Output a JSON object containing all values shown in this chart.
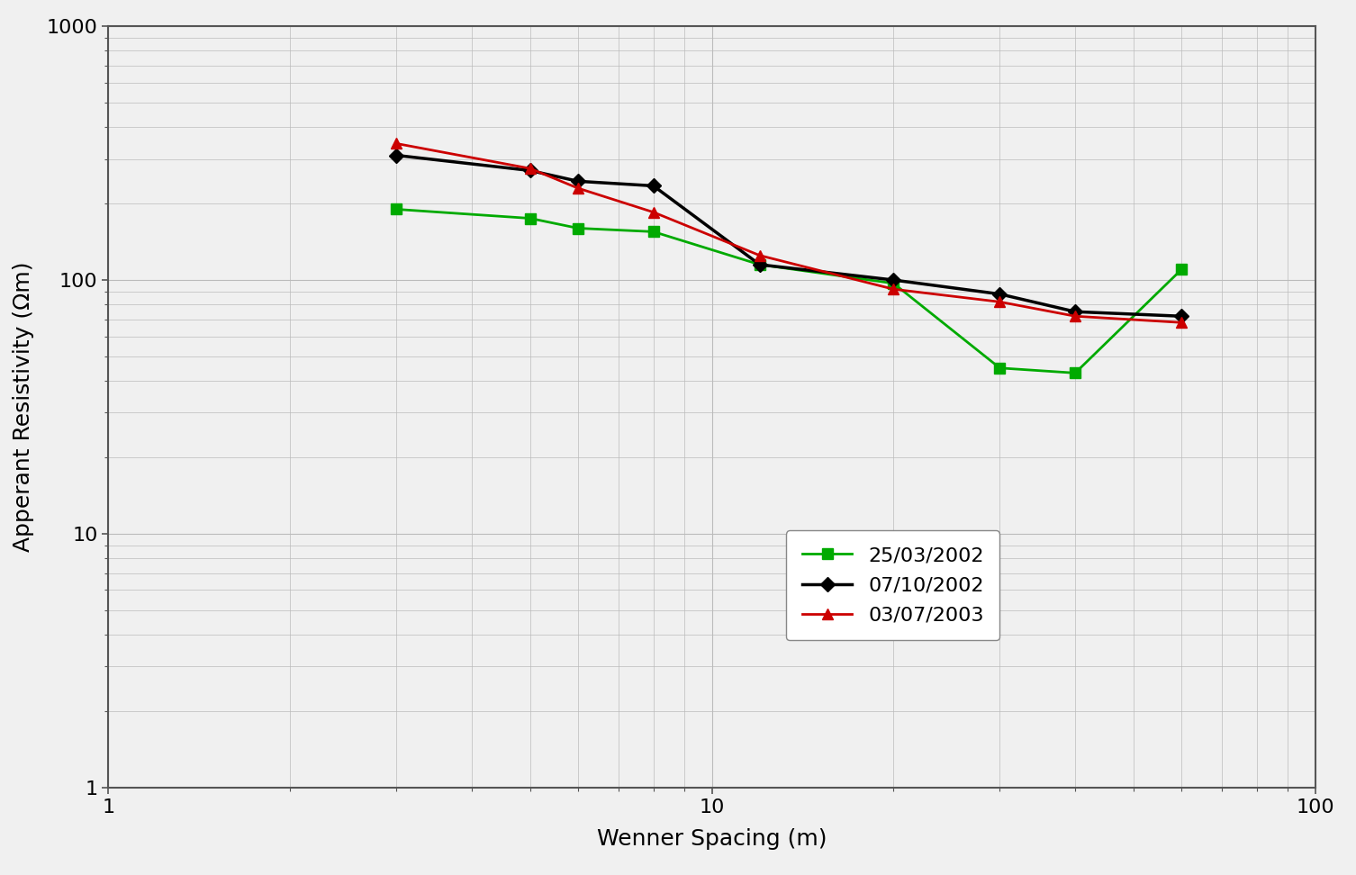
{
  "series": [
    {
      "label": "25/03/2002",
      "color": "#00AA00",
      "marker": "s",
      "linewidth": 2.0,
      "markersize": 8,
      "x": [
        3,
        5,
        6,
        8,
        12,
        20,
        30,
        40,
        60
      ],
      "y": [
        190,
        175,
        160,
        155,
        115,
        97,
        45,
        43,
        110
      ]
    },
    {
      "label": "07/10/2002",
      "color": "#000000",
      "marker": "D",
      "linewidth": 2.5,
      "markersize": 8,
      "x": [
        3,
        5,
        6,
        8,
        12,
        20,
        30,
        40,
        60
      ],
      "y": [
        310,
        270,
        245,
        235,
        115,
        100,
        88,
        75,
        72
      ]
    },
    {
      "label": "03/07/2003",
      "color": "#CC0000",
      "marker": "^",
      "linewidth": 2.0,
      "markersize": 9,
      "x": [
        3,
        5,
        6,
        8,
        12,
        20,
        30,
        40,
        60
      ],
      "y": [
        345,
        275,
        230,
        185,
        125,
        92,
        82,
        72,
        68
      ]
    }
  ],
  "xlabel": "Wenner Spacing (m)",
  "ylabel": "Apperant Resistivity (Ωm)",
  "xlim": [
    1,
    100
  ],
  "ylim": [
    1,
    1000
  ],
  "grid_color": "#bbbbbb",
  "background_color": "#f0f0f0",
  "axes_background": "#f0f0f0",
  "xlabel_fontsize": 18,
  "ylabel_fontsize": 18,
  "tick_fontsize": 16,
  "legend_fontsize": 16,
  "spine_color": "#555555",
  "spine_linewidth": 1.5
}
